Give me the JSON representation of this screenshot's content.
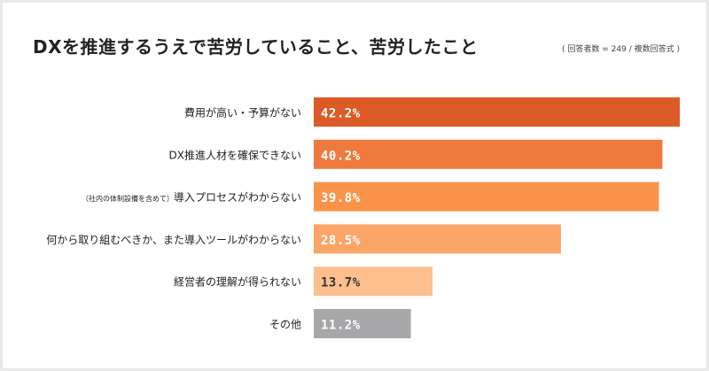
{
  "title": "DXを推進するうえで苦労していること、苦労したこと",
  "note": "( 回答者数 = 249 / 複数回答式 )",
  "chart_data": {
    "type": "bar",
    "orientation": "horizontal",
    "title": "DXを推進するうえで苦労していること、苦労したこと",
    "categories": [
      {
        "prefix": "",
        "label": "費用が高い・予算がない"
      },
      {
        "prefix": "",
        "label": "DX推進人材を確保できない"
      },
      {
        "prefix": "（社内の体制設備を含めて）",
        "label": "導入プロセスがわからない"
      },
      {
        "prefix": "",
        "label": "何から取り組むべきか、また導入ツールがわからない"
      },
      {
        "prefix": "",
        "label": "経営者の理解が得られない"
      },
      {
        "prefix": "",
        "label": "その他"
      }
    ],
    "values": [
      42.2,
      40.2,
      39.8,
      28.5,
      13.7,
      11.2
    ],
    "value_labels": [
      "42.2%",
      "40.2%",
      "39.8%",
      "28.5%",
      "13.7%",
      "11.2%"
    ],
    "colors": [
      "#dc5a25",
      "#ee7b3d",
      "#f9934a",
      "#fca568",
      "#fdbf8e",
      "#a7a7aa"
    ],
    "value_text_colors": [
      "#ffffff",
      "#ffffff",
      "#ffffff",
      "#ffffff",
      "#333333",
      "#ffffff"
    ],
    "xlim": [
      0,
      44
    ],
    "grid": false,
    "legend": "none"
  }
}
